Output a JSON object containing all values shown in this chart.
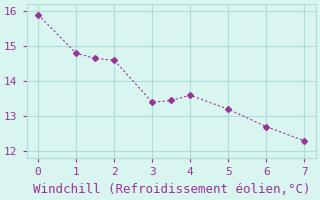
{
  "x": [
    0,
    1,
    1.5,
    2,
    3,
    3.5,
    4,
    5,
    6,
    7
  ],
  "y": [
    15.9,
    14.8,
    14.65,
    14.6,
    13.4,
    13.45,
    13.6,
    13.2,
    12.7,
    12.3
  ],
  "line_color": "#993399",
  "marker": "D",
  "marker_size": 3,
  "background_color": "#d8f5f0",
  "grid_color": "#b0ddd8",
  "xlabel": "Windchill (Refroidissement éolien,°C)",
  "xlabel_color": "#993399",
  "xlabel_fontsize": 9,
  "tick_color": "#993399",
  "tick_fontsize": 8,
  "xlim": [
    -0.3,
    7.3
  ],
  "ylim": [
    11.8,
    16.2
  ],
  "yticks": [
    12,
    13,
    14,
    15,
    16
  ],
  "xticks": [
    0,
    1,
    2,
    3,
    4,
    5,
    6,
    7
  ]
}
